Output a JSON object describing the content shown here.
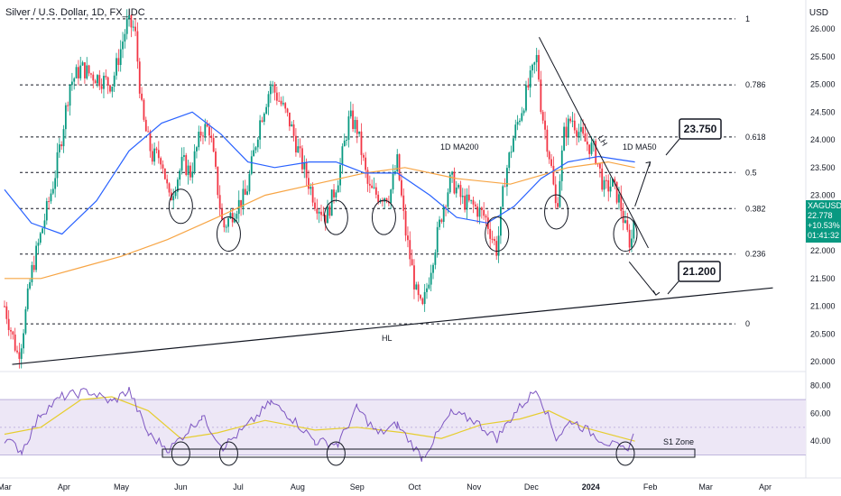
{
  "chart_data": {
    "type": "candlestick",
    "title": "Silver / U.S. Dollar, 1D, FX_IDC",
    "currency": "USD",
    "symbol": "XAGUSD",
    "last_price": "22.778",
    "change_pct": "+10.53%",
    "countdown": "01:41:32",
    "price_axis": {
      "ticks": [
        "26.000",
        "25.500",
        "25.000",
        "24.500",
        "24.000",
        "23.500",
        "23.000",
        "22.500",
        "22.000",
        "21.500",
        "21.000",
        "20.500",
        "20.000"
      ],
      "range": [
        19.75,
        26.1
      ]
    },
    "time_axis": {
      "ticks": [
        "Mar",
        "Apr",
        "May",
        "Jun",
        "Jul",
        "Aug",
        "Sep",
        "Oct",
        "Nov",
        "Dec",
        "2024",
        "Feb",
        "Mar",
        "Apr"
      ]
    },
    "fib_levels": [
      {
        "label": "1",
        "price": 26.18
      },
      {
        "label": "0.786",
        "price": 24.99
      },
      {
        "label": "0.618",
        "price": 24.05
      },
      {
        "label": "0.5",
        "price": 23.41
      },
      {
        "label": "0.382",
        "price": 22.76
      },
      {
        "label": "0.236",
        "price": 21.94
      },
      {
        "label": "0",
        "price": 20.68
      }
    ],
    "annotations": {
      "ma200_label": "1D MA200",
      "ma50_label": "1D MA50",
      "lh_label": "LH",
      "hl_label": "HL",
      "target_high": "23.750",
      "target_low": "21.200",
      "rsi_zone_label": "S1 Zone"
    },
    "price_series": [
      {
        "t": "2023-03-01",
        "p": 21.0
      },
      {
        "t": "2023-03-08",
        "p": 20.1
      },
      {
        "t": "2023-03-10",
        "p": 20.4
      },
      {
        "t": "2023-03-15",
        "p": 21.6
      },
      {
        "t": "2023-03-20",
        "p": 22.3
      },
      {
        "t": "2023-03-27",
        "p": 23.3
      },
      {
        "t": "2023-03-31",
        "p": 24.1
      },
      {
        "t": "2023-04-04",
        "p": 25.0
      },
      {
        "t": "2023-04-10",
        "p": 25.3
      },
      {
        "t": "2023-04-14",
        "p": 25.2
      },
      {
        "t": "2023-04-20",
        "p": 25.1
      },
      {
        "t": "2023-04-26",
        "p": 25.0
      },
      {
        "t": "2023-05-04",
        "p": 26.1
      },
      {
        "t": "2023-05-08",
        "p": 26.0
      },
      {
        "t": "2023-05-12",
        "p": 24.4
      },
      {
        "t": "2023-05-17",
        "p": 23.7
      },
      {
        "t": "2023-05-22",
        "p": 23.7
      },
      {
        "t": "2023-05-26",
        "p": 22.9
      },
      {
        "t": "2023-06-02",
        "p": 23.6
      },
      {
        "t": "2023-06-06",
        "p": 23.4
      },
      {
        "t": "2023-06-12",
        "p": 24.2
      },
      {
        "t": "2023-06-16",
        "p": 24.2
      },
      {
        "t": "2023-06-23",
        "p": 22.4
      },
      {
        "t": "2023-06-30",
        "p": 22.8
      },
      {
        "t": "2023-07-05",
        "p": 23.0
      },
      {
        "t": "2023-07-12",
        "p": 24.3
      },
      {
        "t": "2023-07-18",
        "p": 25.0
      },
      {
        "t": "2023-07-24",
        "p": 24.6
      },
      {
        "t": "2023-07-28",
        "p": 24.3
      },
      {
        "t": "2023-08-03",
        "p": 23.6
      },
      {
        "t": "2023-08-10",
        "p": 22.9
      },
      {
        "t": "2023-08-16",
        "p": 22.6
      },
      {
        "t": "2023-08-22",
        "p": 23.3
      },
      {
        "t": "2023-08-28",
        "p": 24.4
      },
      {
        "t": "2023-09-01",
        "p": 24.2
      },
      {
        "t": "2023-09-07",
        "p": 23.1
      },
      {
        "t": "2023-09-12",
        "p": 23.0
      },
      {
        "t": "2023-09-18",
        "p": 23.0
      },
      {
        "t": "2023-09-22",
        "p": 23.6
      },
      {
        "t": "2023-09-26",
        "p": 22.4
      },
      {
        "t": "2023-10-02",
        "p": 21.2
      },
      {
        "t": "2023-10-05",
        "p": 20.9
      },
      {
        "t": "2023-10-10",
        "p": 21.8
      },
      {
        "t": "2023-10-16",
        "p": 22.8
      },
      {
        "t": "2023-10-20",
        "p": 23.3
      },
      {
        "t": "2023-10-26",
        "p": 22.9
      },
      {
        "t": "2023-11-01",
        "p": 22.8
      },
      {
        "t": "2023-11-07",
        "p": 22.6
      },
      {
        "t": "2023-11-13",
        "p": 22.0
      },
      {
        "t": "2023-11-17",
        "p": 23.3
      },
      {
        "t": "2023-11-22",
        "p": 24.1
      },
      {
        "t": "2023-11-28",
        "p": 24.8
      },
      {
        "t": "2023-12-04",
        "p": 25.5
      },
      {
        "t": "2023-12-06",
        "p": 24.6
      },
      {
        "t": "2023-12-11",
        "p": 23.6
      },
      {
        "t": "2023-12-14",
        "p": 22.7
      },
      {
        "t": "2023-12-18",
        "p": 24.1
      },
      {
        "t": "2023-12-22",
        "p": 24.4
      },
      {
        "t": "2023-12-28",
        "p": 24.0
      },
      {
        "t": "2024-01-03",
        "p": 23.8
      },
      {
        "t": "2024-01-08",
        "p": 23.1
      },
      {
        "t": "2024-01-12",
        "p": 23.2
      },
      {
        "t": "2024-01-16",
        "p": 22.9
      },
      {
        "t": "2024-01-19",
        "p": 22.4
      },
      {
        "t": "2024-01-22",
        "p": 22.1
      },
      {
        "t": "2024-01-24",
        "p": 22.8
      }
    ],
    "ma50_series": [
      {
        "t": "2023-03-01",
        "p": 23.1
      },
      {
        "t": "2023-03-15",
        "p": 22.5
      },
      {
        "t": "2023-03-31",
        "p": 22.3
      },
      {
        "t": "2023-04-18",
        "p": 22.9
      },
      {
        "t": "2023-05-05",
        "p": 23.8
      },
      {
        "t": "2023-05-22",
        "p": 24.3
      },
      {
        "t": "2023-06-07",
        "p": 24.5
      },
      {
        "t": "2023-06-22",
        "p": 24.1
      },
      {
        "t": "2023-07-06",
        "p": 23.6
      },
      {
        "t": "2023-07-20",
        "p": 23.5
      },
      {
        "t": "2023-08-07",
        "p": 23.6
      },
      {
        "t": "2023-08-21",
        "p": 23.6
      },
      {
        "t": "2023-09-05",
        "p": 23.4
      },
      {
        "t": "2023-09-22",
        "p": 23.4
      },
      {
        "t": "2023-10-09",
        "p": 23.0
      },
      {
        "t": "2023-10-23",
        "p": 22.6
      },
      {
        "t": "2023-11-08",
        "p": 22.5
      },
      {
        "t": "2023-11-22",
        "p": 22.8
      },
      {
        "t": "2023-12-06",
        "p": 23.3
      },
      {
        "t": "2023-12-20",
        "p": 23.6
      },
      {
        "t": "2024-01-05",
        "p": 23.7
      },
      {
        "t": "2024-01-24",
        "p": 23.6
      }
    ],
    "ma200_series": [
      {
        "t": "2023-03-01",
        "p": 21.5
      },
      {
        "t": "2023-03-20",
        "p": 21.5
      },
      {
        "t": "2023-04-10",
        "p": 21.7
      },
      {
        "t": "2023-05-01",
        "p": 21.9
      },
      {
        "t": "2023-05-25",
        "p": 22.2
      },
      {
        "t": "2023-06-20",
        "p": 22.6
      },
      {
        "t": "2023-07-15",
        "p": 23.0
      },
      {
        "t": "2023-08-10",
        "p": 23.2
      },
      {
        "t": "2023-09-05",
        "p": 23.4
      },
      {
        "t": "2023-09-26",
        "p": 23.5
      },
      {
        "t": "2023-10-23",
        "p": 23.3
      },
      {
        "t": "2023-11-20",
        "p": 23.2
      },
      {
        "t": "2023-12-20",
        "p": 23.5
      },
      {
        "t": "2024-01-10",
        "p": 23.6
      },
      {
        "t": "2024-01-24",
        "p": 23.5
      }
    ],
    "rsi": {
      "ticks": [
        "80.00",
        "60.00",
        "40.00"
      ],
      "zone": [
        30,
        70
      ],
      "series": [
        {
          "t": "2023-03-01",
          "v": 42
        },
        {
          "t": "2023-03-10",
          "v": 33
        },
        {
          "t": "2023-03-20",
          "v": 60
        },
        {
          "t": "2023-03-31",
          "v": 72
        },
        {
          "t": "2023-04-14",
          "v": 76
        },
        {
          "t": "2023-04-26",
          "v": 68
        },
        {
          "t": "2023-05-05",
          "v": 77
        },
        {
          "t": "2023-05-15",
          "v": 45
        },
        {
          "t": "2023-05-26",
          "v": 34
        },
        {
          "t": "2023-06-12",
          "v": 58
        },
        {
          "t": "2023-06-23",
          "v": 36
        },
        {
          "t": "2023-07-05",
          "v": 50
        },
        {
          "t": "2023-07-18",
          "v": 68
        },
        {
          "t": "2023-07-28",
          "v": 58
        },
        {
          "t": "2023-08-10",
          "v": 40
        },
        {
          "t": "2023-08-22",
          "v": 38
        },
        {
          "t": "2023-09-01",
          "v": 64
        },
        {
          "t": "2023-09-12",
          "v": 45
        },
        {
          "t": "2023-09-22",
          "v": 52
        },
        {
          "t": "2023-10-05",
          "v": 28
        },
        {
          "t": "2023-10-20",
          "v": 60
        },
        {
          "t": "2023-11-01",
          "v": 55
        },
        {
          "t": "2023-11-13",
          "v": 42
        },
        {
          "t": "2023-11-22",
          "v": 60
        },
        {
          "t": "2023-12-04",
          "v": 78
        },
        {
          "t": "2023-12-14",
          "v": 42
        },
        {
          "t": "2023-12-22",
          "v": 55
        },
        {
          "t": "2024-01-08",
          "v": 40
        },
        {
          "t": "2024-01-19",
          "v": 33
        },
        {
          "t": "2024-01-24",
          "v": 45
        }
      ],
      "signal": [
        {
          "t": "2023-03-01",
          "v": 45
        },
        {
          "t": "2023-03-20",
          "v": 50
        },
        {
          "t": "2023-04-10",
          "v": 70
        },
        {
          "t": "2023-04-26",
          "v": 72
        },
        {
          "t": "2023-05-15",
          "v": 62
        },
        {
          "t": "2023-06-01",
          "v": 42
        },
        {
          "t": "2023-06-20",
          "v": 46
        },
        {
          "t": "2023-07-15",
          "v": 55
        },
        {
          "t": "2023-08-10",
          "v": 48
        },
        {
          "t": "2023-09-01",
          "v": 50
        },
        {
          "t": "2023-09-26",
          "v": 46
        },
        {
          "t": "2023-10-15",
          "v": 42
        },
        {
          "t": "2023-11-05",
          "v": 52
        },
        {
          "t": "2023-11-25",
          "v": 56
        },
        {
          "t": "2023-12-10",
          "v": 62
        },
        {
          "t": "2023-12-28",
          "v": 50
        },
        {
          "t": "2024-01-24",
          "v": 40
        }
      ]
    },
    "lines": {
      "hl": [
        {
          "t": "2023-03-05",
          "p": 19.95
        },
        {
          "t": "2024-04-05",
          "p": 21.33
        }
      ],
      "lh": [
        {
          "t": "2023-12-05",
          "p": 25.85
        },
        {
          "t": "2024-01-31",
          "p": 22.05
        }
      ]
    },
    "colors": {
      "up": "#089981",
      "down": "#f23645",
      "ma50": "#2962ff",
      "ma200": "#f7a545",
      "rsi": "#7e57c2",
      "rsi_signal": "#e6cd2f",
      "rsi_zone": "#ede7f6"
    }
  }
}
